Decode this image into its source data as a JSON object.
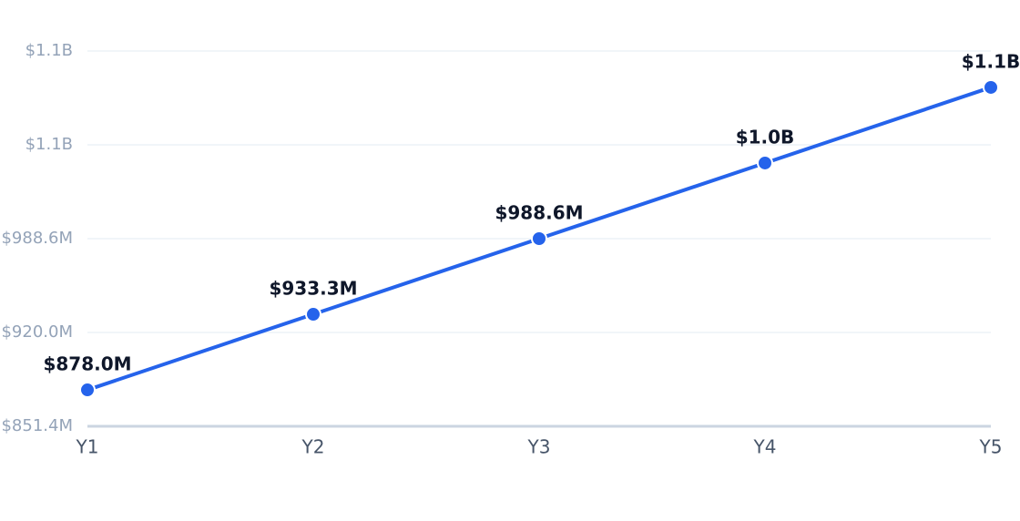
{
  "chart_data": {
    "type": "line",
    "categories": [
      "Y1",
      "Y2",
      "Y3",
      "Y4",
      "Y5"
    ],
    "series": [
      {
        "color": "#2563eb",
        "values": [
          878000000,
          933300000,
          988600000,
          1043900000,
          1099200000
        ],
        "value_labels": [
          "$878.0M",
          "$933.3M",
          "$988.6M",
          "$1.0B",
          "$1.1B"
        ]
      }
    ],
    "ylim": [
      851400000,
      1125800000
    ],
    "yticks": [
      {
        "value": 851400000,
        "label": "$851.4M"
      },
      {
        "value": 920000000,
        "label": "$920.0M"
      },
      {
        "value": 988600000,
        "label": "$988.6M"
      },
      {
        "value": 1057200000,
        "label": "$1.1B"
      },
      {
        "value": 1125800000,
        "label": "$1.1B"
      }
    ],
    "grid": true
  }
}
